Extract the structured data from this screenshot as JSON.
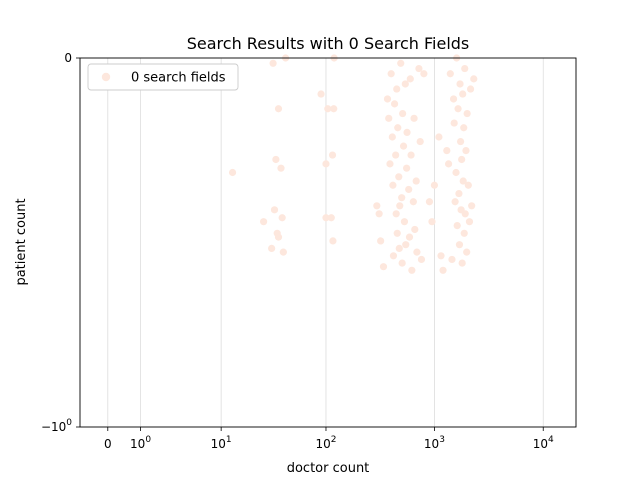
{
  "chart_data": {
    "type": "scatter",
    "title": "Search Results with 0 Search Fields",
    "xlabel": "doctor count",
    "ylabel": "patient count",
    "xscale": "symlog",
    "yscale": "symlog",
    "xlim": [
      -0.8,
      20000
    ],
    "ylim": [
      -1,
      0
    ],
    "x_ticks": [
      {
        "value": 0,
        "base": "0",
        "exp": ""
      },
      {
        "value": 1,
        "base": "10",
        "exp": "0"
      },
      {
        "value": 10,
        "base": "10",
        "exp": "1"
      },
      {
        "value": 100,
        "base": "10",
        "exp": "2"
      },
      {
        "value": 1000,
        "base": "10",
        "exp": "3"
      },
      {
        "value": 10000,
        "base": "10",
        "exp": "4"
      }
    ],
    "y_ticks": [
      {
        "value": 0,
        "base": "0",
        "exp": ""
      },
      {
        "value": -1,
        "base": "−10",
        "exp": "0"
      }
    ],
    "grid": "x-major",
    "legend_position": "top-left",
    "series": [
      {
        "name": "0 search fields",
        "color": "#fde7dd",
        "points": [
          [
            13,
            -0.24
          ],
          [
            26,
            -0.36
          ],
          [
            31,
            -0.43
          ],
          [
            32,
            -0.01
          ],
          [
            33,
            -0.33
          ],
          [
            34,
            -0.21
          ],
          [
            35,
            -0.39
          ],
          [
            36,
            -0.1
          ],
          [
            36,
            -0.4
          ],
          [
            38,
            -0.23
          ],
          [
            39,
            -0.35
          ],
          [
            40,
            -0.44
          ],
          [
            42,
            -0.0
          ],
          [
            90,
            -0.07
          ],
          [
            100,
            -0.22
          ],
          [
            100,
            -0.35
          ],
          [
            104,
            -0.1
          ],
          [
            112,
            -0.35
          ],
          [
            115,
            -0.2
          ],
          [
            116,
            -0.41
          ],
          [
            118,
            -0.1
          ],
          [
            119,
            -0.0
          ],
          [
            295,
            -0.32
          ],
          [
            310,
            -0.34
          ],
          [
            320,
            -0.41
          ],
          [
            340,
            -0.48
          ],
          [
            370,
            -0.08
          ],
          [
            380,
            -0.12
          ],
          [
            390,
            -0.22
          ],
          [
            400,
            -0.03
          ],
          [
            410,
            -0.16
          ],
          [
            415,
            -0.27
          ],
          [
            420,
            -0.45
          ],
          [
            430,
            -0.09
          ],
          [
            440,
            -0.2
          ],
          [
            445,
            -0.34
          ],
          [
            450,
            -0.06
          ],
          [
            455,
            -0.39
          ],
          [
            460,
            -0.14
          ],
          [
            470,
            -0.25
          ],
          [
            475,
            -0.43
          ],
          [
            480,
            -0.32
          ],
          [
            490,
            -0.01
          ],
          [
            500,
            -0.3
          ],
          [
            505,
            -0.47
          ],
          [
            510,
            -0.11
          ],
          [
            520,
            -0.18
          ],
          [
            530,
            -0.36
          ],
          [
            540,
            -0.05
          ],
          [
            545,
            -0.42
          ],
          [
            555,
            -0.23
          ],
          [
            560,
            -0.15
          ],
          [
            580,
            -0.28
          ],
          [
            590,
            -0.4
          ],
          [
            600,
            -0.04
          ],
          [
            610,
            -0.2
          ],
          [
            620,
            -0.49
          ],
          [
            640,
            -0.31
          ],
          [
            650,
            -0.12
          ],
          [
            660,
            -0.38
          ],
          [
            680,
            -0.26
          ],
          [
            690,
            -0.44
          ],
          [
            720,
            -0.02
          ],
          [
            740,
            -0.17
          ],
          [
            760,
            -0.46
          ],
          [
            800,
            -0.03
          ],
          [
            900,
            -0.31
          ],
          [
            950,
            -0.36
          ],
          [
            1000,
            -0.27
          ],
          [
            1100,
            -0.16
          ],
          [
            1150,
            -0.45
          ],
          [
            1200,
            -0.49
          ],
          [
            1300,
            -0.19
          ],
          [
            1350,
            -0.22
          ],
          [
            1400,
            -0.03
          ],
          [
            1450,
            -0.46
          ],
          [
            1500,
            -0.08
          ],
          [
            1520,
            -0.13
          ],
          [
            1550,
            -0.31
          ],
          [
            1580,
            -0.24
          ],
          [
            1600,
            -0.0
          ],
          [
            1620,
            -0.37
          ],
          [
            1650,
            -0.1
          ],
          [
            1680,
            -0.29
          ],
          [
            1700,
            -0.42
          ],
          [
            1720,
            -0.05
          ],
          [
            1740,
            -0.17
          ],
          [
            1760,
            -0.33
          ],
          [
            1780,
            -0.21
          ],
          [
            1800,
            -0.47
          ],
          [
            1820,
            -0.07
          ],
          [
            1840,
            -0.26
          ],
          [
            1860,
            -0.14
          ],
          [
            1880,
            -0.39
          ],
          [
            1900,
            -0.02
          ],
          [
            1920,
            -0.34
          ],
          [
            1950,
            -0.19
          ],
          [
            1980,
            -0.44
          ],
          [
            2000,
            -0.11
          ],
          [
            2050,
            -0.27
          ],
          [
            2100,
            -0.36
          ],
          [
            2150,
            -0.06
          ],
          [
            2200,
            -0.32
          ],
          [
            2300,
            -0.04
          ]
        ]
      }
    ]
  }
}
